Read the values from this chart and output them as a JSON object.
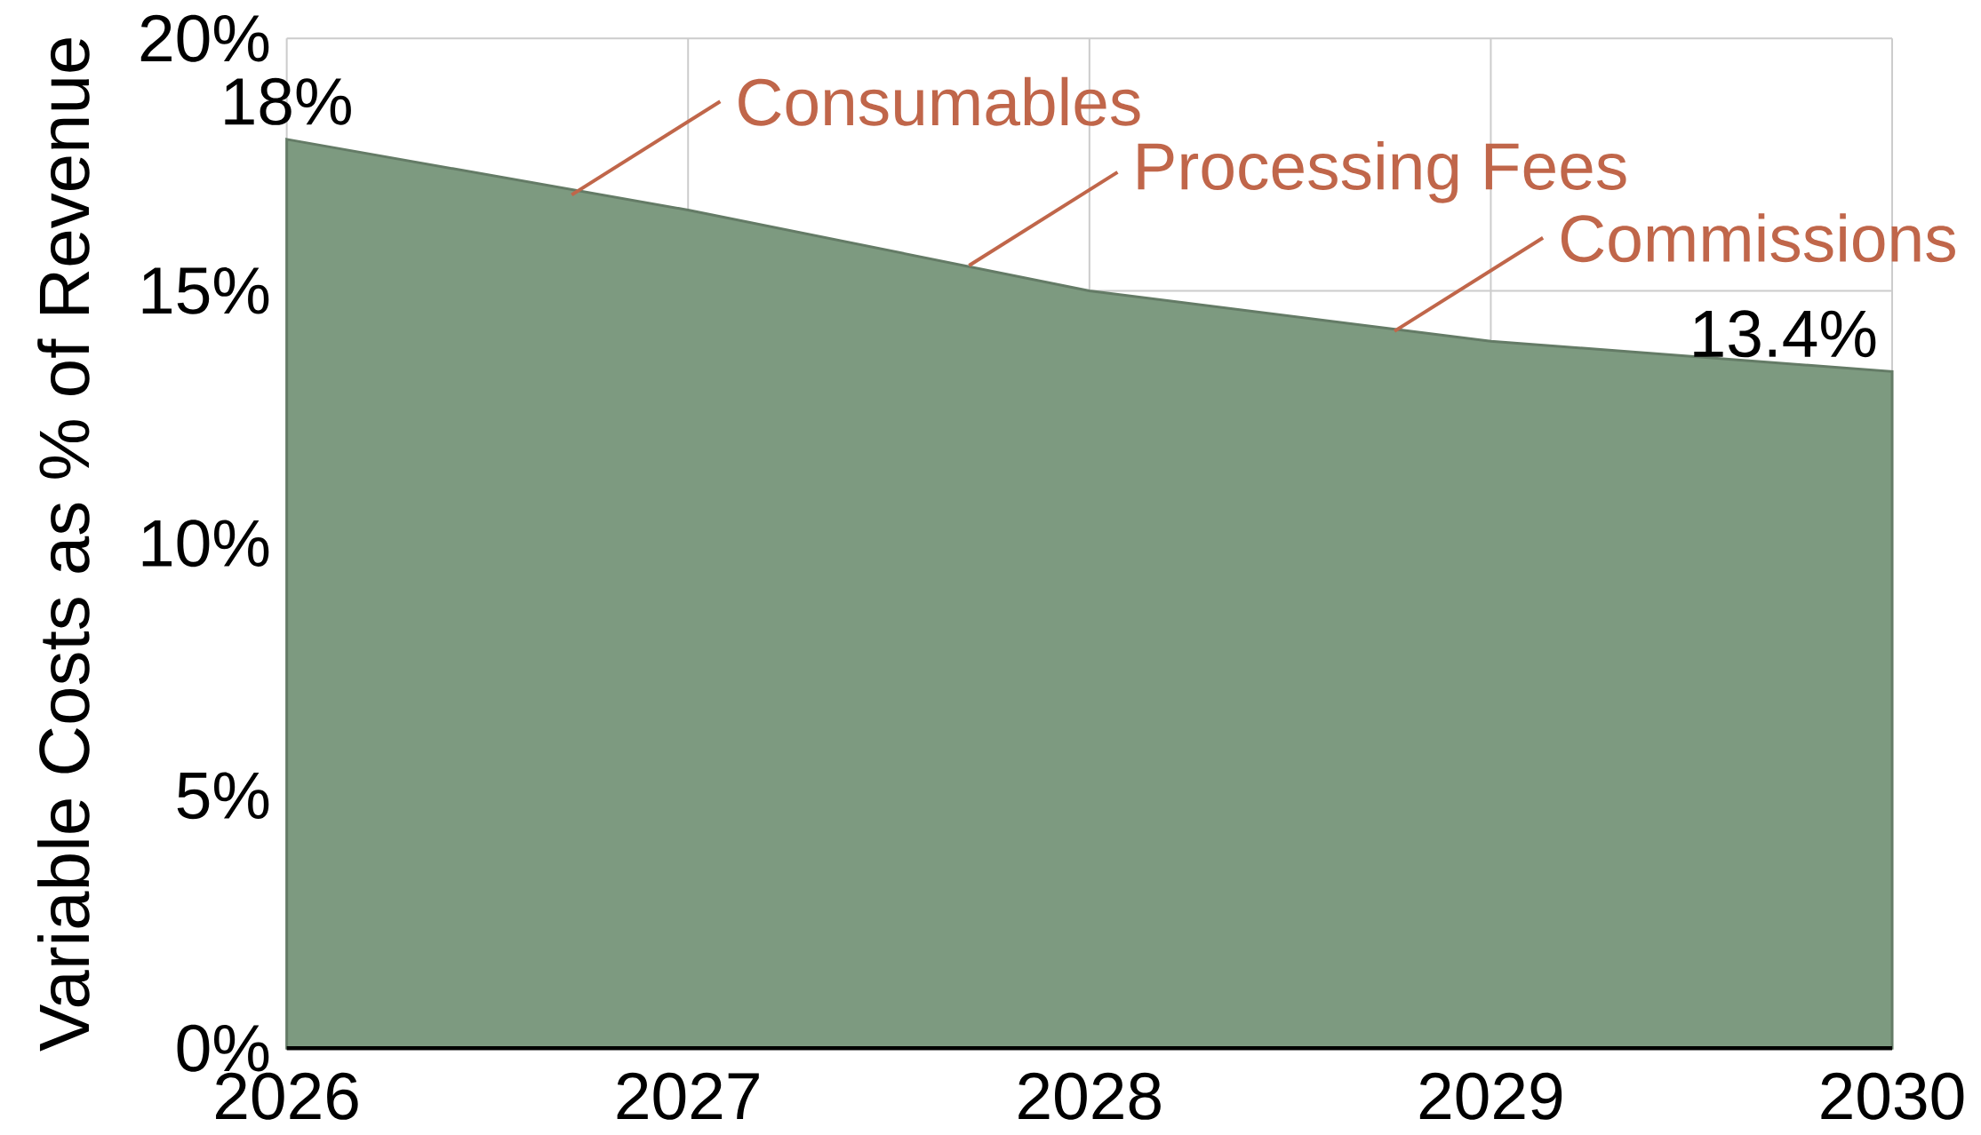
{
  "chart_data": {
    "type": "area",
    "ylabel": "Variable Costs as % of Revenue",
    "x": [
      2026,
      2027,
      2028,
      2029,
      2030
    ],
    "series": [
      {
        "color": "#7d9a80",
        "values": [
          18,
          16.6,
          15.0,
          14.0,
          13.4
        ],
        "value_labels": [
          "18%",
          null,
          null,
          null,
          "13.4%"
        ]
      }
    ],
    "xlim": [
      2026,
      2030
    ],
    "xticks": [
      2026,
      2027,
      2028,
      2029,
      2030
    ],
    "ylim": [
      0,
      20
    ],
    "yticks": [
      {
        "value": 0,
        "label": "0%"
      },
      {
        "value": 5,
        "label": "5%"
      },
      {
        "value": 10,
        "label": "10%"
      },
      {
        "value": 15,
        "label": "15%"
      },
      {
        "value": 20,
        "label": "20%"
      }
    ],
    "grid": true,
    "annotations": [
      {
        "text": "Consumables",
        "x": 2026.71,
        "y": 16.9
      },
      {
        "text": "Processing Fees",
        "x": 2027.7,
        "y": 15.5
      },
      {
        "text": "Commissions",
        "x": 2028.76,
        "y": 14.2
      }
    ]
  }
}
